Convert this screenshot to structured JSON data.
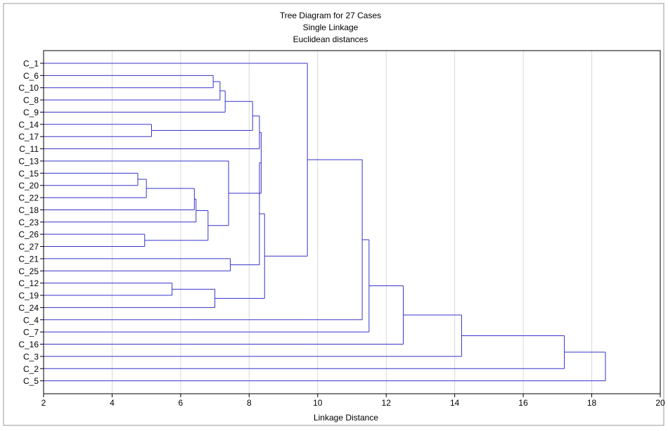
{
  "chart_data": {
    "type": "dendrogram",
    "title": "Tree Diagram for 27 Cases",
    "subtitles": [
      "Single Linkage",
      "Euclidean distances"
    ],
    "xlabel": "Linkage Distance",
    "xlim": [
      2,
      20
    ],
    "xticks": [
      2,
      4,
      6,
      8,
      10,
      12,
      14,
      16,
      18,
      20
    ],
    "grid": "vertical",
    "colors": {
      "link": "#3333cc",
      "grid": "#d8d8d8",
      "axis": "#000000"
    },
    "leaves": [
      "C_1",
      "C_6",
      "C_10",
      "C_8",
      "C_9",
      "C_14",
      "C_17",
      "C_11",
      "C_13",
      "C_15",
      "C_20",
      "C_22",
      "C_18",
      "C_23",
      "C_26",
      "C_27",
      "C_21",
      "C_25",
      "C_12",
      "C_19",
      "C_24",
      "C_4",
      "C_7",
      "C_16",
      "C_3",
      "C_2",
      "C_5"
    ],
    "merges": [
      {
        "a": "C_15",
        "b": "C_20",
        "height": 4.75
      },
      {
        "a": "C_26",
        "b": "C_27",
        "height": 4.95
      },
      {
        "a": "m1",
        "b": "C_22",
        "height": 5.0
      },
      {
        "a": "C_14",
        "b": "C_17",
        "height": 5.15
      },
      {
        "a": "C_12",
        "b": "C_19",
        "height": 5.75
      },
      {
        "a": "C_6",
        "b": "C_10",
        "height": 6.95
      },
      {
        "a": "m6",
        "b": "C_8",
        "height": 7.15
      },
      {
        "a": "m7",
        "b": "C_9",
        "height": 7.3
      },
      {
        "a": "m3",
        "b": "C_18",
        "height": 6.4
      },
      {
        "a": "m9",
        "b": "C_23",
        "height": 6.45
      },
      {
        "a": "m10",
        "b": "m2",
        "height": 6.8
      },
      {
        "a": "m5",
        "b": "C_24",
        "height": 7.0
      },
      {
        "a": "C_13",
        "b": "m11",
        "height": 7.4
      },
      {
        "a": "C_21",
        "b": "C_25",
        "height": 7.45
      },
      {
        "a": "m8",
        "b": "m4",
        "height": 8.1
      },
      {
        "a": "m15",
        "b": "C_11",
        "height": 8.3
      },
      {
        "a": "m16",
        "b": "m13",
        "height": 8.35
      },
      {
        "a": "m17",
        "b": "m14",
        "height": 8.3
      },
      {
        "a": "m18",
        "b": "m12",
        "height": 8.45
      },
      {
        "a": "C_1",
        "b": "m19",
        "height": 9.7
      },
      {
        "a": "m20",
        "b": "C_4",
        "height": 11.3
      },
      {
        "a": "m21",
        "b": "C_7",
        "height": 11.5
      },
      {
        "a": "m22",
        "b": "C_16",
        "height": 12.5
      },
      {
        "a": "m23",
        "b": "C_3",
        "height": 14.2
      },
      {
        "a": "m24",
        "b": "C_2",
        "height": 17.2
      },
      {
        "a": "m25",
        "b": "C_5",
        "height": 18.4
      }
    ]
  }
}
